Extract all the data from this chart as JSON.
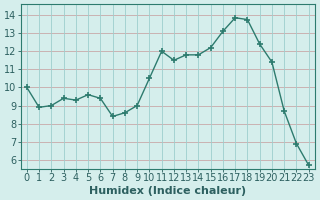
{
  "x": [
    0,
    1,
    2,
    3,
    4,
    5,
    6,
    7,
    8,
    9,
    10,
    11,
    12,
    13,
    14,
    15,
    16,
    17,
    18,
    19,
    20,
    21,
    22,
    23
  ],
  "y": [
    10.0,
    8.9,
    9.0,
    9.4,
    9.3,
    9.6,
    9.4,
    8.4,
    8.6,
    9.0,
    10.5,
    12.0,
    11.5,
    11.8,
    11.8,
    12.2,
    13.1,
    13.85,
    13.75,
    12.4,
    11.4,
    8.7,
    6.9,
    5.7
  ],
  "line_color": "#2d7b6e",
  "marker": "+",
  "marker_size": 4,
  "marker_linewidth": 1.2,
  "linewidth": 1.0,
  "bg_color": "#d5eeec",
  "grid_color_h": "#c9a8a8",
  "grid_color_v": "#9ecece",
  "xlabel": "Humidex (Indice chaleur)",
  "xlabel_fontsize": 8,
  "xlabel_weight": "bold",
  "xtick_labels": [
    "0",
    "1",
    "2",
    "3",
    "4",
    "5",
    "6",
    "7",
    "8",
    "9",
    "10",
    "11",
    "12",
    "13",
    "14",
    "15",
    "16",
    "17",
    "18",
    "19",
    "20",
    "21",
    "22",
    "23"
  ],
  "ytick_labels": [
    "6",
    "7",
    "8",
    "9",
    "10",
    "11",
    "12",
    "13",
    "14"
  ],
  "ylim": [
    5.5,
    14.6
  ],
  "xlim": [
    -0.5,
    23.5
  ],
  "yticks": [
    6,
    7,
    8,
    9,
    10,
    11,
    12,
    13,
    14
  ],
  "tick_color": "#2d6060",
  "tick_fontsize": 7,
  "spine_color": "#2d7b6e"
}
